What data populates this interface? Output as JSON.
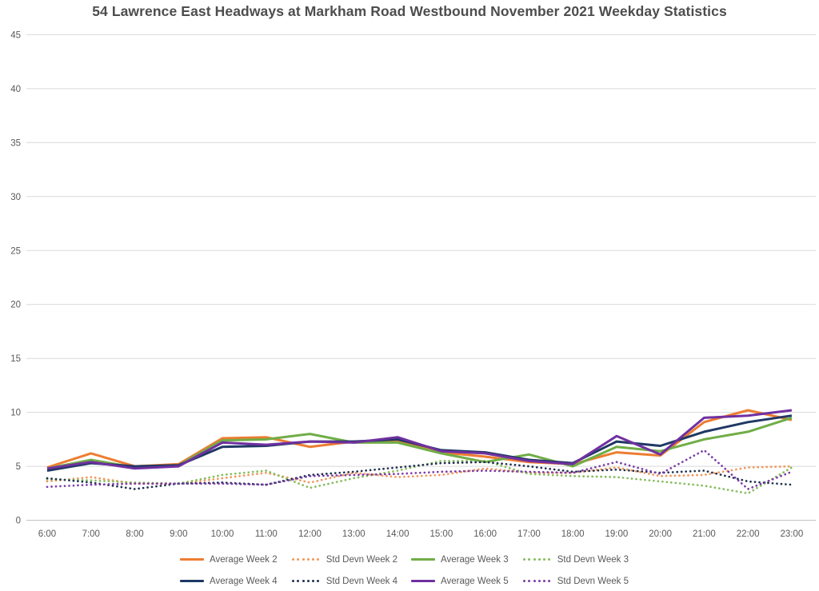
{
  "chart_data": {
    "type": "line",
    "title": "54 Lawrence East Headways at Markham Road Westbound November 2021 Weekday Statistics",
    "xlabel": "",
    "ylabel": "",
    "x": [
      "6:00",
      "7:00",
      "8:00",
      "9:00",
      "10:00",
      "11:00",
      "12:00",
      "13:00",
      "14:00",
      "15:00",
      "16:00",
      "17:00",
      "18:00",
      "19:00",
      "20:00",
      "21:00",
      "22:00",
      "23:00"
    ],
    "ylim": [
      0,
      45
    ],
    "yticks": [
      0,
      5,
      10,
      15,
      20,
      25,
      30,
      35,
      40,
      45
    ],
    "grid": true,
    "legend_position": "bottom",
    "legend_rows": 2,
    "axis_text_color": "#595959",
    "gridline_color": "#d9d9d9",
    "axis_line_color": "#bfbfbf",
    "series": [
      {
        "name": "Average Week 2",
        "style": "solid",
        "color": "#ED7D31",
        "values": [
          4.9,
          6.2,
          5.0,
          5.2,
          7.6,
          7.7,
          6.8,
          7.3,
          7.4,
          6.3,
          5.9,
          5.4,
          5.2,
          6.3,
          6.0,
          9.1,
          10.2,
          9.3
        ]
      },
      {
        "name": "Std Devn Week 2",
        "style": "dotted",
        "color": "#F0975A",
        "values": [
          3.6,
          4.0,
          3.4,
          3.4,
          3.9,
          4.4,
          3.5,
          4.4,
          4.0,
          4.2,
          4.8,
          4.4,
          4.4,
          4.9,
          4.1,
          4.2,
          4.9,
          5.0
        ]
      },
      {
        "name": "Average Week 3",
        "style": "solid",
        "color": "#70AD47",
        "values": [
          4.8,
          5.6,
          4.9,
          5.1,
          7.4,
          7.5,
          8.0,
          7.2,
          7.2,
          6.2,
          5.4,
          6.1,
          5.0,
          6.8,
          6.4,
          7.5,
          8.2,
          9.5
        ]
      },
      {
        "name": "Std Devn Week 3",
        "style": "dotted",
        "color": "#85BC5C",
        "values": [
          3.8,
          3.7,
          3.5,
          3.4,
          4.2,
          4.6,
          3.0,
          3.9,
          4.6,
          5.5,
          5.5,
          4.3,
          4.1,
          4.0,
          3.6,
          3.2,
          2.5,
          4.9
        ]
      },
      {
        "name": "Average Week 4",
        "style": "solid",
        "color": "#1F3864",
        "values": [
          4.6,
          5.3,
          5.0,
          5.1,
          6.8,
          6.9,
          7.3,
          7.3,
          7.5,
          6.5,
          6.3,
          5.6,
          5.3,
          7.3,
          6.9,
          8.2,
          9.1,
          9.7
        ]
      },
      {
        "name": "Std Devn Week 4",
        "style": "dotted",
        "color": "#1F3050",
        "values": [
          3.9,
          3.5,
          2.9,
          3.4,
          3.5,
          3.3,
          4.2,
          4.5,
          4.9,
          5.3,
          5.4,
          5.0,
          4.5,
          4.7,
          4.4,
          4.6,
          3.6,
          3.3
        ]
      },
      {
        "name": "Average Week 5",
        "style": "solid",
        "color": "#7030A0",
        "values": [
          4.8,
          5.4,
          4.8,
          5.0,
          7.2,
          7.0,
          7.3,
          7.2,
          7.7,
          6.4,
          6.2,
          5.5,
          5.2,
          7.8,
          6.1,
          9.5,
          9.7,
          10.2
        ]
      },
      {
        "name": "Std Devn Week 5",
        "style": "dotted",
        "color": "#7B3DA8",
        "values": [
          3.1,
          3.3,
          3.4,
          3.4,
          3.4,
          3.3,
          4.1,
          4.2,
          4.3,
          4.5,
          4.6,
          4.5,
          4.4,
          5.4,
          4.3,
          6.5,
          2.9,
          4.5
        ]
      }
    ]
  }
}
